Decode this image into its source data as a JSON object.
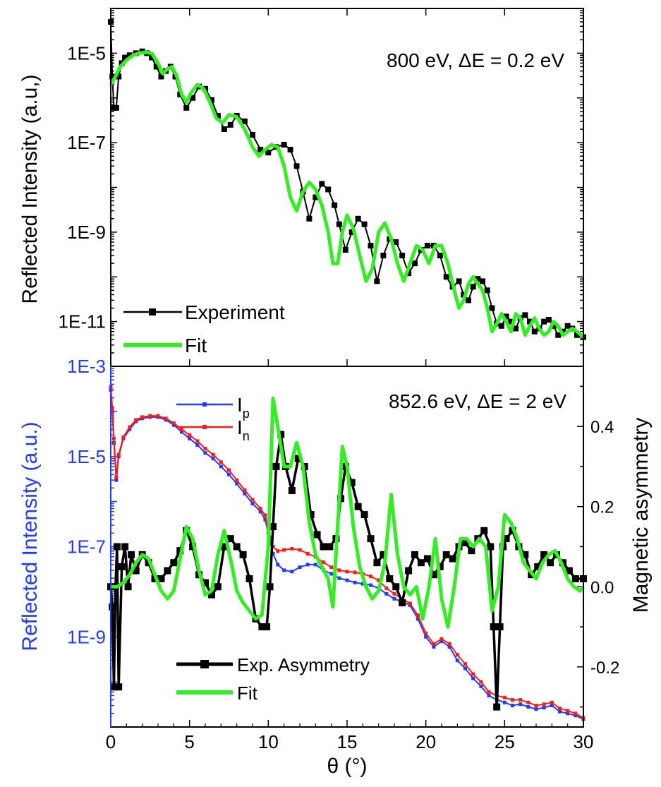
{
  "chart_data": [
    {
      "type": "line",
      "panel": "top",
      "title": "",
      "annotation": "800 eV, ΔE = 0.2 eV",
      "xlabel": "θ (°)",
      "ylabel": "Reflected Intensity (a.u,)",
      "xlim": [
        0,
        30
      ],
      "ylim": [
        1e-12,
        0.0001
      ],
      "yscale": "log",
      "yticks": [
        1e-05,
        1e-07,
        1e-09,
        1e-11
      ],
      "ytick_labels": [
        "1E-5",
        "1E-7",
        "1E-9",
        "1E-11"
      ],
      "legend": "bottom-left",
      "series": [
        {
          "name": "Experiment",
          "color": "#000000",
          "marker": "square",
          "x": [
            0,
            0.1,
            0.2,
            0.35,
            0.5,
            0.7,
            0.9,
            1.2,
            1.6,
            2.0,
            2.3,
            2.6,
            2.9,
            3.2,
            3.5,
            3.8,
            4.1,
            4.4,
            4.8,
            5.2,
            5.6,
            6.0,
            6.4,
            6.8,
            7.2,
            7.6,
            8.0,
            8.5,
            9.0,
            9.5,
            10.0,
            10.5,
            11.0,
            11.4,
            11.8,
            12.2,
            12.6,
            13.0,
            13.4,
            13.8,
            14.2,
            14.5,
            14.9,
            15.3,
            15.7,
            16.1,
            16.5,
            16.9,
            17.3,
            17.7,
            18.1,
            18.5,
            18.9,
            19.3,
            19.7,
            20.1,
            20.5,
            20.9,
            21.3,
            21.7,
            22.1,
            22.4,
            22.7,
            23.0,
            23.3,
            23.6,
            23.9,
            24.2,
            24.5,
            24.8,
            25.1,
            25.4,
            25.7,
            26.0,
            26.3,
            26.6,
            26.9,
            27.2,
            27.5,
            27.8,
            28.1,
            28.4,
            28.7,
            29.0,
            29.3,
            29.6,
            30.0
          ],
          "y": [
            5e-05,
            3e-06,
            6e-07,
            6e-07,
            3e-06,
            6e-06,
            8e-06,
            9e-06,
            1e-05,
            1.1e-05,
            1e-05,
            8e-06,
            5e-06,
            3e-06,
            4e-06,
            5e-06,
            3e-06,
            1.2e-06,
            6e-07,
            1e-06,
            1.8e-06,
            1.6e-06,
            9e-07,
            4e-07,
            2e-07,
            2.5e-07,
            4e-07,
            3e-07,
            1.5e-07,
            7e-08,
            6e-08,
            8e-08,
            9e-08,
            7e-08,
            3e-08,
            8e-09,
            2e-09,
            6e-09,
            1.2e-08,
            9e-09,
            4e-09,
            1.5e-09,
            4e-10,
            1e-09,
            2e-09,
            1.5e-09,
            5e-10,
            8e-11,
            3e-10,
            7e-10,
            6e-10,
            3e-10,
            1.2e-10,
            2e-10,
            4e-10,
            5e-10,
            5e-10,
            3e-10,
            1e-10,
            6e-11,
            8e-11,
            4e-11,
            3e-11,
            6e-11,
            9e-11,
            8e-11,
            5e-11,
            2e-11,
            9e-12,
            8e-12,
            1.3e-11,
            1e-11,
            7e-12,
            1.2e-11,
            1.4e-11,
            1e-11,
            6e-12,
            7e-12,
            1e-11,
            1.1e-11,
            8e-12,
            5e-12,
            6e-12,
            8e-12,
            7e-12,
            5e-12,
            4.5e-12
          ]
        },
        {
          "name": "Fit",
          "color": "#33ee22",
          "x": [
            0.0,
            0.3,
            0.6,
            1.0,
            1.4,
            1.8,
            2.2,
            2.6,
            3.0,
            3.3,
            3.6,
            3.9,
            4.2,
            4.5,
            4.8,
            5.1,
            5.5,
            5.9,
            6.3,
            6.7,
            7.1,
            7.5,
            8.0,
            8.5,
            9.0,
            9.4,
            9.8,
            10.2,
            10.6,
            11.0,
            11.4,
            11.8,
            12.2,
            12.6,
            13.0,
            13.4,
            13.8,
            14.1,
            14.4,
            14.7,
            15.0,
            15.4,
            15.8,
            16.2,
            16.6,
            17.0,
            17.4,
            17.8,
            18.2,
            18.6,
            19.0,
            19.4,
            19.8,
            20.2,
            20.6,
            21.0,
            21.4,
            21.8,
            22.1,
            22.4,
            22.7,
            23.0,
            23.3,
            23.6,
            23.9,
            24.2,
            24.5,
            24.8,
            25.1,
            25.4,
            25.7,
            26.0,
            26.3,
            26.6,
            26.9,
            27.2,
            27.5,
            27.8,
            28.1,
            28.4,
            28.7,
            29.0,
            29.3,
            29.6,
            30.0
          ],
          "y": [
            2e-06,
            3e-06,
            5e-06,
            7e-06,
            9e-06,
            1e-05,
            1.05e-05,
            1e-05,
            6e-06,
            3.5e-06,
            4.5e-06,
            5e-06,
            3e-06,
            1.2e-06,
            8e-07,
            1.3e-06,
            2e-06,
            1.6e-06,
            8e-07,
            3.5e-07,
            2.8e-07,
            4.2e-07,
            3.8e-07,
            2e-07,
            8e-08,
            5e-08,
            7e-08,
            9e-08,
            8e-08,
            3e-08,
            6e-09,
            3e-09,
            8e-09,
            1.3e-08,
            9e-09,
            4e-09,
            1e-09,
            2e-10,
            2e-10,
            1e-09,
            2.4e-09,
            1.2e-09,
            3e-10,
            8e-11,
            1.5e-10,
            1e-09,
            1.6e-09,
            7e-10,
            2e-10,
            8e-11,
            2e-10,
            5e-10,
            4e-10,
            2e-10,
            5e-10,
            5e-10,
            2e-10,
            5e-11,
            2e-11,
            3e-11,
            7e-11,
            1e-10,
            7e-11,
            5e-11,
            2e-11,
            6e-12,
            9e-12,
            1.5e-11,
            1e-11,
            6e-12,
            1.5e-11,
            1.2e-11,
            5e-12,
            8e-12,
            1.2e-11,
            7e-12,
            5e-12,
            6e-12,
            1e-11,
            8e-12,
            5e-12,
            6e-12,
            7e-12,
            6e-12,
            4.5e-12
          ]
        }
      ]
    },
    {
      "type": "line",
      "panel": "bottom",
      "title": "",
      "annotation": "852.6 eV, ΔE = 2 eV",
      "xlabel": "θ (°)",
      "ylabel": "Reflected Intensity (a.u.)",
      "y2label": "Magnetic asymmetry",
      "xlim": [
        0,
        30
      ],
      "xticks": [
        0,
        5,
        10,
        15,
        20,
        25,
        30
      ],
      "ylim": [
        1e-11,
        0.001
      ],
      "yscale": "log",
      "yticks": [
        0.001,
        1e-05,
        1e-07,
        1e-09
      ],
      "ytick_labels": [
        "1E-3",
        "1E-5",
        "1E-7",
        "1E-9"
      ],
      "y2lim": [
        -0.35,
        0.55
      ],
      "y2ticks": [
        -0.2,
        0.0,
        0.2,
        0.4
      ],
      "y2tick_labels": [
        "-0.2",
        "0.0",
        "0.2",
        "0.4"
      ],
      "legend": "top-center (intensity), bottom-center (asymmetry)",
      "series": [
        {
          "name": "I",
          "subscript": "p",
          "axis": "left",
          "color": "#1f3bff",
          "x": [
            0,
            0.1,
            0.2,
            0.35,
            0.5,
            0.8,
            1.2,
            1.6,
            2.0,
            2.5,
            3.0,
            3.5,
            4.0,
            4.5,
            5.0,
            5.5,
            6.0,
            6.5,
            7.0,
            7.5,
            8.0,
            8.5,
            9.0,
            9.5,
            9.8,
            10.0,
            10.3,
            10.6,
            11.0,
            11.5,
            12.0,
            12.5,
            13.0,
            13.5,
            14.0,
            14.5,
            15.0,
            15.5,
            16.0,
            16.5,
            17.0,
            17.5,
            18.0,
            18.5,
            19.0,
            19.5,
            20.0,
            20.5,
            21.0,
            21.5,
            22.0,
            22.5,
            23.0,
            23.5,
            24.0,
            24.5,
            25.0,
            25.5,
            26.0,
            26.5,
            27.0,
            27.5,
            28.0,
            28.5,
            29.0,
            29.5,
            30.0
          ],
          "y": [
            0.0003,
            0.0001,
            2e-05,
            3e-06,
            1e-05,
            2.5e-05,
            4e-05,
            6e-05,
            7e-05,
            7.5e-05,
            7.5e-05,
            6.5e-05,
            5e-05,
            3.5e-05,
            2.5e-05,
            1.8e-05,
            1.2e-05,
            9e-06,
            6e-06,
            4e-06,
            2.5e-06,
            1.5e-06,
            9e-07,
            6e-07,
            4e-07,
            2e-07,
            7e-08,
            4e-08,
            3e-08,
            2.8e-08,
            3.5e-08,
            4e-08,
            4e-08,
            3e-08,
            2.5e-08,
            2e-08,
            1.8e-08,
            1.6e-08,
            1.5e-08,
            1.4e-08,
            1.2e-08,
            9e-09,
            7e-09,
            6e-09,
            5e-09,
            2.5e-09,
            1e-09,
            6e-10,
            8e-10,
            6e-10,
            3e-10,
            2e-10,
            1.2e-10,
            8e-11,
            5e-11,
            4e-11,
            3.5e-11,
            3e-11,
            3.2e-11,
            2.8e-11,
            2.5e-11,
            2.7e-11,
            3e-11,
            2.2e-11,
            2e-11,
            1.8e-11,
            1.5e-11
          ]
        },
        {
          "name": "I",
          "subscript": "n",
          "axis": "left",
          "color": "#ff1a1a",
          "x": [
            0,
            0.1,
            0.2,
            0.35,
            0.5,
            0.8,
            1.2,
            1.6,
            2.0,
            2.5,
            3.0,
            3.5,
            4.0,
            4.5,
            5.0,
            5.5,
            6.0,
            6.5,
            7.0,
            7.5,
            8.0,
            8.5,
            9.0,
            9.5,
            9.8,
            10.0,
            10.3,
            10.6,
            11.0,
            11.5,
            12.0,
            12.5,
            13.0,
            13.5,
            14.0,
            14.5,
            15.0,
            15.5,
            16.0,
            16.5,
            17.0,
            17.5,
            18.0,
            18.5,
            19.0,
            19.5,
            20.0,
            20.5,
            21.0,
            21.5,
            22.0,
            22.5,
            23.0,
            23.5,
            24.0,
            24.5,
            25.0,
            25.5,
            26.0,
            26.5,
            27.0,
            27.5,
            28.0,
            28.5,
            29.0,
            29.5,
            30.0
          ],
          "y": [
            0.00035,
            0.00012,
            2.5e-05,
            3.5e-06,
            1.1e-05,
            2.7e-05,
            4.5e-05,
            6.5e-05,
            7.5e-05,
            8e-05,
            8e-05,
            7e-05,
            5.5e-05,
            4e-05,
            3e-05,
            2.2e-05,
            1.5e-05,
            1.1e-05,
            7.5e-06,
            5e-06,
            3e-06,
            1.8e-06,
            1.1e-06,
            7e-07,
            5e-07,
            2.5e-07,
            1e-07,
            8e-08,
            8.5e-08,
            9e-08,
            8.5e-08,
            7e-08,
            6e-08,
            4.5e-08,
            3.5e-08,
            3e-08,
            2.8e-08,
            2.7e-08,
            2.5e-08,
            2.2e-08,
            1.8e-08,
            1.2e-08,
            9e-09,
            7e-09,
            5.5e-09,
            3e-09,
            1.2e-09,
            7e-10,
            9e-10,
            7e-10,
            4e-10,
            2.5e-10,
            1.5e-10,
            1e-10,
            6e-11,
            5e-11,
            4.5e-11,
            4e-11,
            4e-11,
            3.5e-11,
            3e-11,
            3.2e-11,
            3.5e-11,
            2.6e-11,
            2.3e-11,
            2e-11,
            1.6e-11
          ]
        },
        {
          "name": "Exp. Asymmetry",
          "axis": "right",
          "color": "#000000",
          "marker": "square",
          "x": [
            0,
            0.1,
            0.2,
            0.3,
            0.4,
            0.5,
            0.7,
            0.9,
            1.1,
            1.3,
            1.6,
            2.0,
            2.4,
            2.8,
            3.2,
            3.6,
            4.0,
            4.4,
            4.8,
            5.2,
            5.6,
            6.0,
            6.4,
            6.8,
            7.2,
            7.6,
            8.0,
            8.4,
            8.8,
            9.2,
            9.6,
            9.9,
            10.1,
            10.3,
            10.5,
            10.8,
            11.1,
            11.5,
            11.9,
            12.3,
            12.7,
            13.1,
            13.5,
            13.9,
            14.3,
            14.6,
            14.9,
            15.3,
            15.7,
            16.1,
            16.5,
            16.9,
            17.3,
            17.7,
            18.1,
            18.5,
            18.9,
            19.3,
            19.7,
            20.1,
            20.5,
            20.9,
            21.3,
            21.7,
            22.1,
            22.5,
            22.9,
            23.3,
            23.7,
            24.1,
            24.3,
            24.5,
            24.7,
            24.9,
            25.1,
            25.5,
            25.9,
            26.3,
            26.7,
            27.1,
            27.5,
            27.9,
            28.3,
            28.7,
            29.1,
            29.5,
            30.0
          ],
          "y": [
            0.0,
            -0.05,
            -0.25,
            0.0,
            0.1,
            -0.25,
            0.05,
            0.1,
            0.0,
            0.08,
            0.04,
            0.08,
            0.06,
            0.02,
            0.02,
            0.04,
            0.06,
            0.09,
            0.14,
            0.1,
            0.03,
            0.01,
            -0.02,
            0.0,
            0.1,
            0.12,
            0.1,
            0.08,
            0.02,
            -0.08,
            -0.1,
            -0.1,
            0.0,
            0.15,
            0.3,
            0.38,
            0.3,
            0.24,
            0.32,
            0.3,
            0.18,
            0.13,
            0.1,
            0.1,
            0.12,
            0.22,
            0.3,
            0.26,
            0.2,
            0.18,
            0.12,
            0.06,
            0.08,
            0.02,
            0.0,
            -0.04,
            0.04,
            0.08,
            0.06,
            0.07,
            0.03,
            0.05,
            0.08,
            0.07,
            0.1,
            0.11,
            0.09,
            0.12,
            0.14,
            0.1,
            -0.1,
            -0.3,
            -0.1,
            0.1,
            0.12,
            0.14,
            0.1,
            0.08,
            0.03,
            0.05,
            0.08,
            0.06,
            0.08,
            0.06,
            0.04,
            0.02,
            0.02
          ]
        },
        {
          "name": "Fit",
          "axis": "right",
          "color": "#33ee22",
          "x": [
            0.0,
            0.4,
            0.8,
            1.2,
            1.6,
            2.0,
            2.4,
            2.8,
            3.2,
            3.6,
            4.0,
            4.4,
            4.8,
            5.2,
            5.6,
            6.0,
            6.4,
            6.8,
            7.2,
            7.6,
            8.0,
            8.4,
            8.8,
            9.2,
            9.6,
            10.0,
            10.3,
            10.6,
            11.0,
            11.4,
            11.8,
            12.2,
            12.6,
            13.0,
            13.4,
            13.8,
            14.1,
            14.4,
            14.7,
            15.0,
            15.4,
            15.8,
            16.2,
            16.6,
            17.0,
            17.4,
            17.8,
            18.2,
            18.6,
            19.0,
            19.4,
            19.8,
            20.2,
            20.6,
            21.0,
            21.4,
            21.8,
            22.2,
            22.6,
            23.0,
            23.4,
            23.8,
            24.2,
            24.6,
            25.0,
            25.4,
            25.8,
            26.2,
            26.6,
            27.0,
            27.4,
            27.8,
            28.2,
            28.6,
            29.0,
            29.4,
            29.8,
            30.0
          ],
          "y": [
            0.0,
            0.0,
            0.01,
            0.03,
            0.06,
            0.08,
            0.07,
            0.03,
            -0.01,
            -0.03,
            -0.01,
            0.07,
            0.15,
            0.12,
            0.04,
            -0.02,
            -0.01,
            0.08,
            0.14,
            0.07,
            -0.01,
            -0.04,
            -0.06,
            -0.08,
            -0.07,
            0.1,
            0.47,
            0.4,
            0.3,
            0.3,
            0.36,
            0.3,
            0.16,
            0.08,
            0.05,
            0.02,
            -0.05,
            0.15,
            0.35,
            0.3,
            0.15,
            0.05,
            0.0,
            -0.03,
            -0.01,
            0.06,
            0.23,
            0.08,
            0.0,
            -0.02,
            0.0,
            -0.08,
            0.0,
            0.12,
            -0.03,
            -0.1,
            0.0,
            0.12,
            0.12,
            0.1,
            0.12,
            0.1,
            -0.06,
            0.0,
            0.18,
            0.16,
            0.12,
            0.06,
            0.04,
            0.02,
            0.06,
            0.08,
            0.09,
            0.06,
            0.02,
            0.0,
            -0.01,
            0.0
          ]
        }
      ]
    }
  ]
}
